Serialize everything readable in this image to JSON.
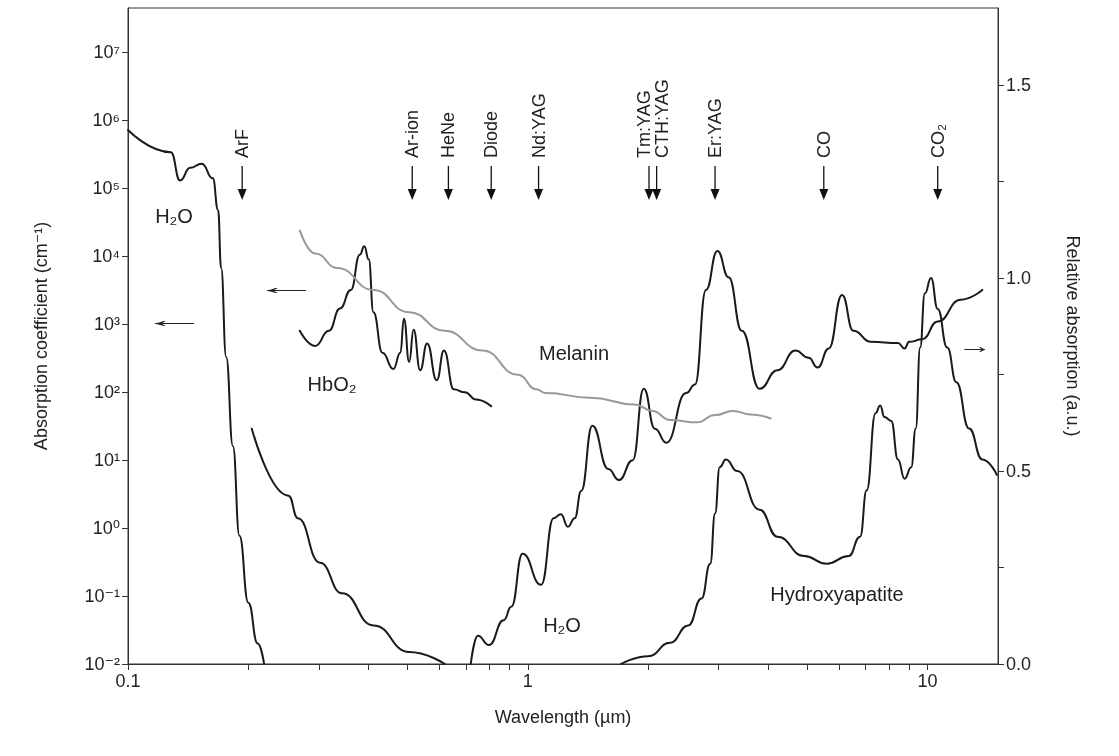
{
  "chart_data": {
    "type": "line",
    "xlabel": "Wavelength (µm)",
    "ylabel": "Absorption coefficient (cm⁻¹)",
    "y2label": "Relative absorption (a.u.)",
    "log": "xy",
    "marker": "none",
    "line_style": "solid",
    "xlim": [
      0.1,
      15
    ],
    "ylim": [
      0.01,
      45000000
    ],
    "y2lim": [
      0,
      1.7
    ],
    "xticks": [
      0.1,
      {
        "value": 0.2,
        "label": null
      },
      {
        "value": 0.3,
        "label": null
      },
      {
        "value": 0.4,
        "label": null
      },
      {
        "value": 0.5,
        "label": null
      },
      {
        "value": 0.6,
        "label": null
      },
      {
        "value": 0.7,
        "label": null
      },
      {
        "value": 0.8,
        "label": null
      },
      {
        "value": 0.9,
        "label": null
      },
      1,
      {
        "value": 2,
        "label": null
      },
      {
        "value": 3,
        "label": null
      },
      {
        "value": 4,
        "label": null
      },
      {
        "value": 5,
        "label": null
      },
      {
        "value": 6,
        "label": null
      },
      {
        "value": 7,
        "label": null
      },
      {
        "value": 8,
        "label": null
      },
      {
        "value": 9,
        "label": null
      },
      10
    ],
    "yticks": [
      {
        "value": 0.01,
        "label": "10⁻²"
      },
      {
        "value": 0.1,
        "label": "10⁻¹"
      },
      {
        "value": 1,
        "label": "10⁰"
      },
      {
        "value": 10,
        "label": "10¹"
      },
      {
        "value": 100,
        "label": "10²"
      },
      {
        "value": 1000,
        "label": "10³"
      },
      {
        "value": 10000,
        "label": "10⁴"
      },
      {
        "value": 100000,
        "label": "10⁵"
      },
      {
        "value": 1000000,
        "label": "10⁶"
      },
      {
        "value": 10000000,
        "label": "10⁷"
      }
    ],
    "y2ticks": [
      {
        "value": 0,
        "label": "0.0"
      },
      {
        "value": 0.25,
        "label": null
      },
      0.5,
      {
        "value": 0.75,
        "label": null
      },
      {
        "value": 1,
        "label": "1.0"
      },
      {
        "value": 1.25,
        "label": null
      },
      1.5
    ],
    "series": [
      {
        "color": "#1a1a1a",
        "x": [
          0.1,
          0.128,
          0.135,
          0.143,
          0.153,
          0.163,
          0.168,
          0.171,
          0.176,
          0.183,
          0.19,
          0.2,
          0.211,
          0.219
        ],
        "values": [
          720000,
          340000,
          130000,
          200000,
          230000,
          140000,
          48000,
          6700,
          330,
          16,
          0.77,
          0.08,
          0.02,
          0.01
        ]
      },
      {
        "color": "#1a1a1a",
        "x": [
          0.204,
          0.252,
          0.266,
          0.302,
          0.343,
          0.411,
          0.505,
          0.62
        ],
        "values": [
          29,
          3.0,
          1.4,
          0.31,
          0.11,
          0.037,
          0.015,
          0.01
        ]
      },
      {
        "color": "#1a1a1a",
        "x": [
          0.72,
          0.75,
          0.8,
          0.87,
          0.91,
          0.97,
          1.08,
          1.16,
          1.21,
          1.26,
          1.31,
          1.36,
          1.45,
          1.59,
          1.69,
          1.83,
          1.95,
          2.08,
          2.22,
          2.49,
          2.62,
          2.79,
          2.98,
          3.18,
          3.43,
          3.8,
          4.21,
          4.67,
          5.04,
          5.31,
          5.66,
          6.11,
          6.52,
          7.22,
          8.43,
          8.76,
          8.99,
          9.7,
          10.6,
          12.1,
          13.7
        ],
        "values": [
          0.01,
          0.026,
          0.019,
          0.044,
          0.07,
          0.42,
          0.146,
          1.4,
          1.6,
          1.05,
          1.4,
          3.5,
          32,
          7.4,
          5.1,
          10,
          112,
          29,
          18,
          97,
          130,
          3200,
          12000,
          4900,
          800,
          112,
          210,
          410,
          320,
          230,
          440,
          2700,
          800,
          550,
          530,
          440,
          550,
          600,
          1100,
          2300,
          3200
        ]
      },
      {
        "color": "#1a1a1a",
        "x": [
          0.269,
          0.294,
          0.318,
          0.339,
          0.361,
          0.38,
          0.39,
          0.4,
          0.411,
          0.433,
          0.461,
          0.48,
          0.49,
          0.505,
          0.518,
          0.538,
          0.56,
          0.592,
          0.617,
          0.653,
          0.696,
          0.742,
          0.81
        ],
        "values": [
          800,
          480,
          800,
          1700,
          3200,
          10500,
          14000,
          9000,
          1500,
          380,
          220,
          380,
          1200,
          280,
          830,
          210,
          520,
          150,
          410,
          110,
          100,
          78,
          62
        ]
      },
      {
        "color": "#999999",
        "x": [
          0.269,
          0.294,
          0.334,
          0.411,
          0.505,
          0.62,
          0.77,
          0.946,
          1.05,
          1.11,
          1.43,
          1.85,
          2.05,
          2.27,
          2.65,
          2.94,
          3.26,
          3.61,
          4.05
        ],
        "values": [
          24000,
          11000,
          6700,
          3200,
          1500,
          800,
          410,
          180,
          110,
          97,
          83,
          66,
          53,
          39,
          36,
          46,
          53,
          47,
          41
        ]
      },
      {
        "color": "#1a1a1a",
        "axis": "y2",
        "x": [
          1.71,
          2.0,
          2.27,
          2.52,
          2.72,
          2.86,
          2.94,
          3.02,
          3.13,
          3.34,
          3.8,
          4.21,
          4.91,
          5.59,
          6.35,
          6.78,
          7.04,
          7.41,
          7.61,
          7.8,
          8.11,
          8.43,
          8.76,
          9.1,
          9.34,
          9.58,
          9.84,
          10.2,
          10.6,
          11.2,
          11.8,
          12.7,
          13.7,
          14.9
        ],
        "values": [
          0,
          0.02,
          0.055,
          0.1,
          0.17,
          0.26,
          0.39,
          0.51,
          0.53,
          0.5,
          0.4,
          0.33,
          0.28,
          0.26,
          0.28,
          0.33,
          0.45,
          0.65,
          0.67,
          0.64,
          0.63,
          0.53,
          0.48,
          0.51,
          0.61,
          0.82,
          0.96,
          1.0,
          0.92,
          0.82,
          0.73,
          0.61,
          0.53,
          0.49
        ]
      }
    ],
    "ref_lines": [
      {
        "axis": "x",
        "value": 0.193,
        "label": "ArF"
      },
      {
        "axis": "x",
        "value": 0.514,
        "label": "Ar-ion"
      },
      {
        "axis": "x",
        "value": 0.633,
        "label": "HeNe"
      },
      {
        "axis": "x",
        "value": 0.81,
        "label": "Diode"
      },
      {
        "axis": "x",
        "value": 1.064,
        "label": "Nd:YAG"
      },
      {
        "axis": "x",
        "value": 2.01,
        "label": "Tm:YAG"
      },
      {
        "axis": "x",
        "value": 2.1,
        "label": "CTH:YAG"
      },
      {
        "axis": "x",
        "value": 2.94,
        "label": "Er:YAG"
      },
      {
        "axis": "x",
        "value": 5.5,
        "label": "CO"
      },
      {
        "axis": "x",
        "value": 10.6,
        "label": "CO₂"
      }
    ],
    "annotations": [
      "H₂O",
      "HbO₂",
      "Melanin",
      "H₂O",
      "Hydroxyapatite",
      "←",
      "←",
      "→"
    ]
  }
}
